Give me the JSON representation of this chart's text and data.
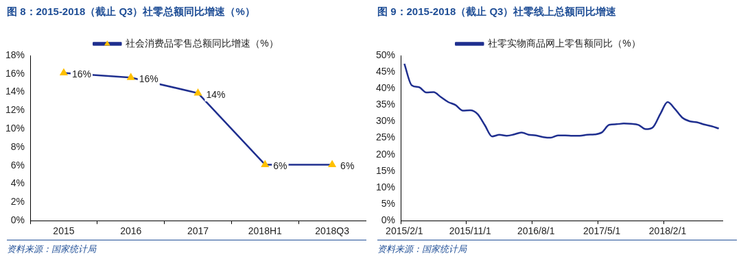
{
  "chart_data": [
    {
      "type": "line",
      "title": "图 8：2015-2018（截止 Q3）社零总额同比增速（%）",
      "categories": [
        "2015",
        "2016",
        "2017",
        "2018H1",
        "2018Q3"
      ],
      "series": [
        {
          "name": "社会消费品零售总额同比增速（%）",
          "color": "#1f2f8f",
          "colors": [
            "#ffc000",
            "#ffc000",
            "#ffc000",
            "#ffc000",
            "#ffc000"
          ],
          "values": [
            16.1,
            15.6,
            13.9,
            6.1,
            6.1
          ],
          "value_labels": [
            "16%",
            "16%",
            "14%",
            "6%",
            "6%"
          ]
        }
      ],
      "ylim": [
        0,
        18
      ],
      "yticks": [
        {
          "value": 0,
          "label": "0%"
        },
        {
          "value": 2,
          "label": "2%"
        },
        {
          "value": 4,
          "label": "4%"
        },
        {
          "value": 6,
          "label": "6%"
        },
        {
          "value": 8,
          "label": "8%"
        },
        {
          "value": 10,
          "label": "10%"
        },
        {
          "value": 12,
          "label": "12%"
        },
        {
          "value": 14,
          "label": "14%"
        },
        {
          "value": 16,
          "label": "16%"
        },
        {
          "value": 18,
          "label": "18%"
        }
      ],
      "legend": "top",
      "marker": "triangle",
      "annotations": [
        "资料来源：国家统计局"
      ]
    },
    {
      "type": "line",
      "title": "图 9：2015-2018（截止 Q3）社零线上总额同比增速",
      "categories": [
        "2015/2/1",
        null,
        null,
        null,
        null,
        null,
        null,
        null,
        null,
        "2015/11/1",
        null,
        null,
        null,
        null,
        null,
        null,
        null,
        null,
        "2016/8/1",
        null,
        null,
        null,
        null,
        null,
        null,
        null,
        null,
        "2017/5/1",
        null,
        null,
        null,
        null,
        null,
        null,
        null,
        null,
        "2018/2/1",
        null,
        null,
        null,
        null,
        null,
        null,
        null
      ],
      "series": [
        {
          "name": "社零实物商品网上零售额同比（%）",
          "color": "#1f2f8f",
          "values": [
            47.5,
            41.0,
            40.4,
            38.8,
            38.9,
            37.4,
            35.9,
            35.0,
            33.3,
            33.4,
            32.3,
            28.9,
            25.5,
            26.0,
            25.7,
            26.1,
            26.7,
            26.0,
            25.8,
            25.3,
            25.1,
            25.8,
            25.8,
            25.7,
            25.7,
            26.0,
            26.1,
            26.7,
            29.0,
            29.2,
            29.4,
            29.3,
            29.0,
            27.7,
            28.3,
            32.3,
            35.9,
            33.8,
            31.2,
            30.1,
            29.8,
            29.1,
            28.6,
            27.9
          ]
        }
      ],
      "ylim": [
        0,
        50
      ],
      "yticks": [
        {
          "value": 0,
          "label": "0%"
        },
        {
          "value": 5,
          "label": "5%"
        },
        {
          "value": 10,
          "label": "10%"
        },
        {
          "value": 15,
          "label": "15%"
        },
        {
          "value": 20,
          "label": "20%"
        },
        {
          "value": 25,
          "label": "25%"
        },
        {
          "value": 30,
          "label": "30%"
        },
        {
          "value": 35,
          "label": "35%"
        },
        {
          "value": 40,
          "label": "40%"
        },
        {
          "value": 45,
          "label": "45%"
        },
        {
          "value": 50,
          "label": "50%"
        }
      ],
      "legend": "top",
      "annotations": [
        "资料来源：国家统计局"
      ]
    }
  ]
}
